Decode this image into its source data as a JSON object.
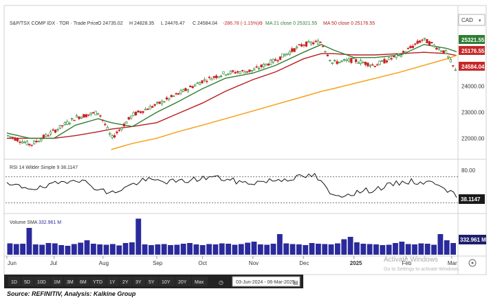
{
  "header": {
    "symbol": "S&P/TSX COMP IDX · TOR · Trade Price",
    "open": "O 24735.02",
    "high": "H 24828.35",
    "low": "L 24476.47",
    "close": "C 24584.04",
    "change": "-286.78 (-1.15%)",
    "ma21": "MA 21 close 0  25321.55",
    "ma50": "MA 50 close 0  25176.55",
    "currency": "CAD"
  },
  "colors": {
    "candle_up": "#1a7a1a",
    "candle_down": "#cc1f1f",
    "ma21": "#2e7d32",
    "ma50": "#b71c1c",
    "trendline": "#f5a623",
    "volume": "#2a2a9c",
    "rsi": "#111111",
    "badge_green": "#2e7d32",
    "badge_red": "#c62828",
    "badge_navy": "#1f1f6e",
    "badge_dark": "#1a1a1a"
  },
  "price_badges": {
    "ma21": "25321.55",
    "ma50": "25176.55",
    "last": "24584.04"
  },
  "rsi_header": "RSI 14 Wilder Simple 9  38.1147",
  "rsi_badge": "38.1147",
  "volume_header": "Volume SMA",
  "volume_sma": "332.961 M",
  "volume_badge": "332.961 M",
  "months": [
    "Jun",
    "Jul",
    "Aug",
    "Sep",
    "Oct",
    "Nov",
    "Dec",
    "2025",
    "Feb",
    "Mar"
  ],
  "timeframes": [
    "1D",
    "5D",
    "10D",
    "1M",
    "3M",
    "6M",
    "YTD",
    "1Y",
    "2Y",
    "3Y",
    "5Y",
    "10Y",
    "20Y",
    "Max"
  ],
  "date_range": "03-Jun-2024 - 06-Mar-2025",
  "watermark": [
    "Activate Windows",
    "Go to Settings to activate Windows."
  ],
  "source": "Source: REFINITIV, Analysis: Kalkine Group",
  "chart_data": [
    {
      "type": "line",
      "title": "S&P/TSX COMP IDX",
      "x": [
        "2024-06-03",
        "2024-06-17",
        "2024-07-02",
        "2024-07-15",
        "2024-07-29",
        "2024-08-06",
        "2024-08-19",
        "2024-09-03",
        "2024-09-16",
        "2024-10-01",
        "2024-10-15",
        "2024-11-01",
        "2024-11-15",
        "2024-12-02",
        "2024-12-13",
        "2024-12-20",
        "2025-01-02",
        "2025-01-15",
        "2025-01-31",
        "2025-02-14",
        "2025-02-28",
        "2025-03-06"
      ],
      "series": [
        {
          "name": "Close",
          "values": [
            22100,
            21750,
            22300,
            22800,
            23000,
            22000,
            22900,
            23300,
            23700,
            24200,
            24500,
            24600,
            25000,
            25600,
            25700,
            24900,
            25000,
            24800,
            25200,
            25800,
            25300,
            24584
          ]
        },
        {
          "name": "MA 21",
          "values": [
            22200,
            22000,
            22000,
            22500,
            22750,
            22600,
            22450,
            23000,
            23400,
            23900,
            24300,
            24500,
            24800,
            25300,
            25600,
            25400,
            25100,
            25100,
            25200,
            25600,
            25450,
            25322
          ]
        },
        {
          "name": "MA 50",
          "values": [
            22000,
            22000,
            22000,
            22100,
            22250,
            22350,
            22450,
            22600,
            22950,
            23350,
            23800,
            24250,
            24550,
            25050,
            25250,
            25250,
            25200,
            25200,
            25250,
            25300,
            25250,
            25177
          ]
        },
        {
          "name": "Trendline",
          "values": [
            null,
            null,
            null,
            null,
            null,
            21570,
            21800,
            22000,
            22250,
            22500,
            22750,
            23050,
            23300,
            23600,
            23800,
            23900,
            24100,
            24300,
            24550,
            24800,
            25050,
            25180
          ]
        }
      ],
      "ylim": [
        21300,
        26200
      ],
      "yticks": [
        22000,
        23000,
        24000,
        25000
      ],
      "grid": false
    },
    {
      "type": "line",
      "title": "RSI 14 Wilder Simple 9",
      "x": [
        "2024-06-03",
        "2024-06-24",
        "2024-07-15",
        "2024-08-05",
        "2024-08-26",
        "2024-09-16",
        "2024-10-07",
        "2024-10-28",
        "2024-11-18",
        "2024-12-09",
        "2024-12-20",
        "2025-01-13",
        "2025-02-03",
        "2025-02-24",
        "2025-03-06"
      ],
      "series": [
        {
          "name": "RSI 14",
          "values": [
            57,
            52,
            68,
            44,
            65,
            62,
            70,
            60,
            66,
            72,
            40,
            50,
            63,
            60,
            38.1147
          ]
        }
      ],
      "ylim": [
        20,
        80
      ],
      "yticks": [
        80
      ]
    },
    {
      "type": "bar",
      "title": "Volume",
      "series": [
        {
          "name": "Volume",
          "values": [
            330,
            310,
            320,
            780,
            300,
            290,
            340,
            330,
            280,
            260,
            310,
            350,
            420,
            320,
            300,
            290,
            310,
            270,
            340,
            360,
            1050,
            300,
            280,
            300,
            310,
            280,
            290,
            320,
            340,
            300,
            280,
            310,
            300,
            330,
            320,
            290,
            310,
            350,
            380,
            300,
            290,
            320,
            600,
            330,
            310,
            300,
            280,
            340,
            320,
            310,
            300,
            330,
            450,
            520,
            360,
            320,
            310,
            300,
            280,
            290,
            340,
            380,
            310,
            300,
            330,
            320,
            290,
            600,
            420,
            340
          ]
        }
      ],
      "ylim": [
        0,
        1100
      ],
      "yticks": [
        500
      ]
    }
  ]
}
